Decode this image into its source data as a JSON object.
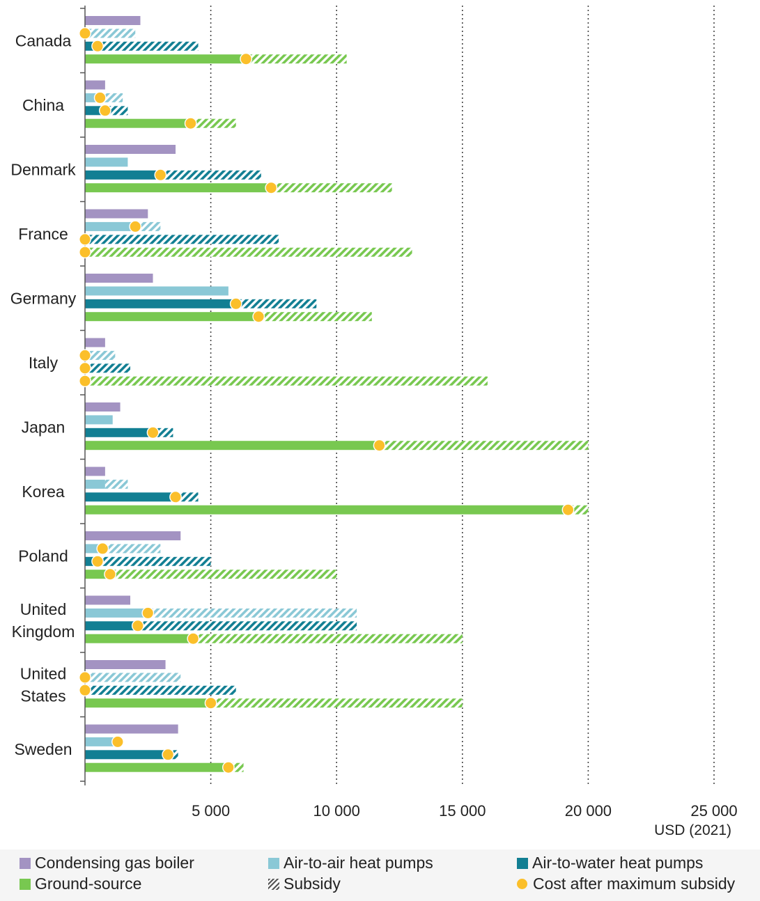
{
  "chart_data": {
    "type": "bar",
    "orientation": "horizontal",
    "xlabel": "USD (2021)",
    "xlim": [
      0,
      25000
    ],
    "ticks": [
      {
        "value": 5000,
        "label": "5 000"
      },
      {
        "value": 10000,
        "label": "10 000"
      },
      {
        "value": 15000,
        "label": "15 000"
      },
      {
        "value": 20000,
        "label": "20 000"
      },
      {
        "value": 25000,
        "label": "25 000"
      }
    ],
    "gridlines": "dotted-vertical",
    "series": [
      {
        "key": "gas",
        "name": "Condensing gas boiler",
        "color": "#a393c2"
      },
      {
        "key": "ata",
        "name": "Air-to-air heat pumps",
        "color": "#8ac8d6"
      },
      {
        "key": "atw",
        "name": "Air-to-water heat pumps",
        "color": "#127f93"
      },
      {
        "key": "gs",
        "name": "Ground-source",
        "color": "#78c850"
      }
    ],
    "subsidy_label": "Subsidy",
    "after_subsidy_label": "Cost after maximum subsidy",
    "dot_color": "#fbbf2a",
    "countries": [
      {
        "label": [
          "Canada"
        ],
        "gas": {
          "cost": 2200
        },
        "ata": {
          "cost": 2000,
          "after": 0
        },
        "atw": {
          "cost": 4500,
          "after": 500
        },
        "gs": {
          "cost": 10400,
          "after": 6400
        }
      },
      {
        "label": [
          "China"
        ],
        "gas": {
          "cost": 800
        },
        "ata": {
          "cost": 1500,
          "after": 600
        },
        "atw": {
          "cost": 1700,
          "after": 800
        },
        "gs": {
          "cost": 6000,
          "after": 4200
        }
      },
      {
        "label": [
          "Denmark"
        ],
        "gas": {
          "cost": 3600
        },
        "ata": {
          "cost": 1700
        },
        "atw": {
          "cost": 7000,
          "after": 3000
        },
        "gs": {
          "cost": 12200,
          "after": 7400
        }
      },
      {
        "label": [
          "France"
        ],
        "gas": {
          "cost": 2500
        },
        "ata": {
          "cost": 3000,
          "after": 2000
        },
        "atw": {
          "cost": 7700,
          "after": 0
        },
        "gs": {
          "cost": 13000,
          "after": 0
        }
      },
      {
        "label": [
          "Germany"
        ],
        "gas": {
          "cost": 2700
        },
        "ata": {
          "cost": 5700
        },
        "atw": {
          "cost": 9200,
          "after": 6000
        },
        "gs": {
          "cost": 11400,
          "after": 6900
        }
      },
      {
        "label": [
          "Italy"
        ],
        "gas": {
          "cost": 800
        },
        "ata": {
          "cost": 1200,
          "after": 0
        },
        "atw": {
          "cost": 1800,
          "after": 0
        },
        "gs": {
          "cost": 16000,
          "after": 0
        }
      },
      {
        "label": [
          "Japan"
        ],
        "gas": {
          "cost": 1400
        },
        "ata": {
          "cost": 1100
        },
        "atw": {
          "cost": 3500,
          "after": 2700
        },
        "gs": {
          "cost": 20000,
          "after": 11700
        }
      },
      {
        "label": [
          "Korea"
        ],
        "gas": {
          "cost": 800
        },
        "ata": {
          "cost": 1700,
          "after": 800,
          "after_dot": false
        },
        "atw": {
          "cost": 4500,
          "after": 3600
        },
        "gs": {
          "cost": 20000,
          "after": 19200
        }
      },
      {
        "label": [
          "Poland"
        ],
        "gas": {
          "cost": 3800
        },
        "ata": {
          "cost": 3000,
          "after": 700
        },
        "atw": {
          "cost": 5000,
          "after": 500
        },
        "gs": {
          "cost": 10000,
          "after": 1000
        }
      },
      {
        "label": [
          "United",
          "Kingdom"
        ],
        "gas": {
          "cost": 1800
        },
        "ata": {
          "cost": 10800,
          "after": 2500
        },
        "atw": {
          "cost": 10800,
          "after": 2100
        },
        "gs": {
          "cost": 15000,
          "after": 4300
        }
      },
      {
        "label": [
          "United",
          "States"
        ],
        "gas": {
          "cost": 3200
        },
        "ata": {
          "cost": 3800,
          "after": 0
        },
        "atw": {
          "cost": 6000,
          "after": 0
        },
        "gs": {
          "cost": 15000,
          "after": 5000
        }
      },
      {
        "label": [
          "Sweden"
        ],
        "gas": {
          "cost": 3700
        },
        "ata": {
          "cost": 1300,
          "after": 1300
        },
        "atw": {
          "cost": 3700,
          "after": 3300
        },
        "gs": {
          "cost": 6300,
          "after": 5700
        }
      }
    ]
  }
}
